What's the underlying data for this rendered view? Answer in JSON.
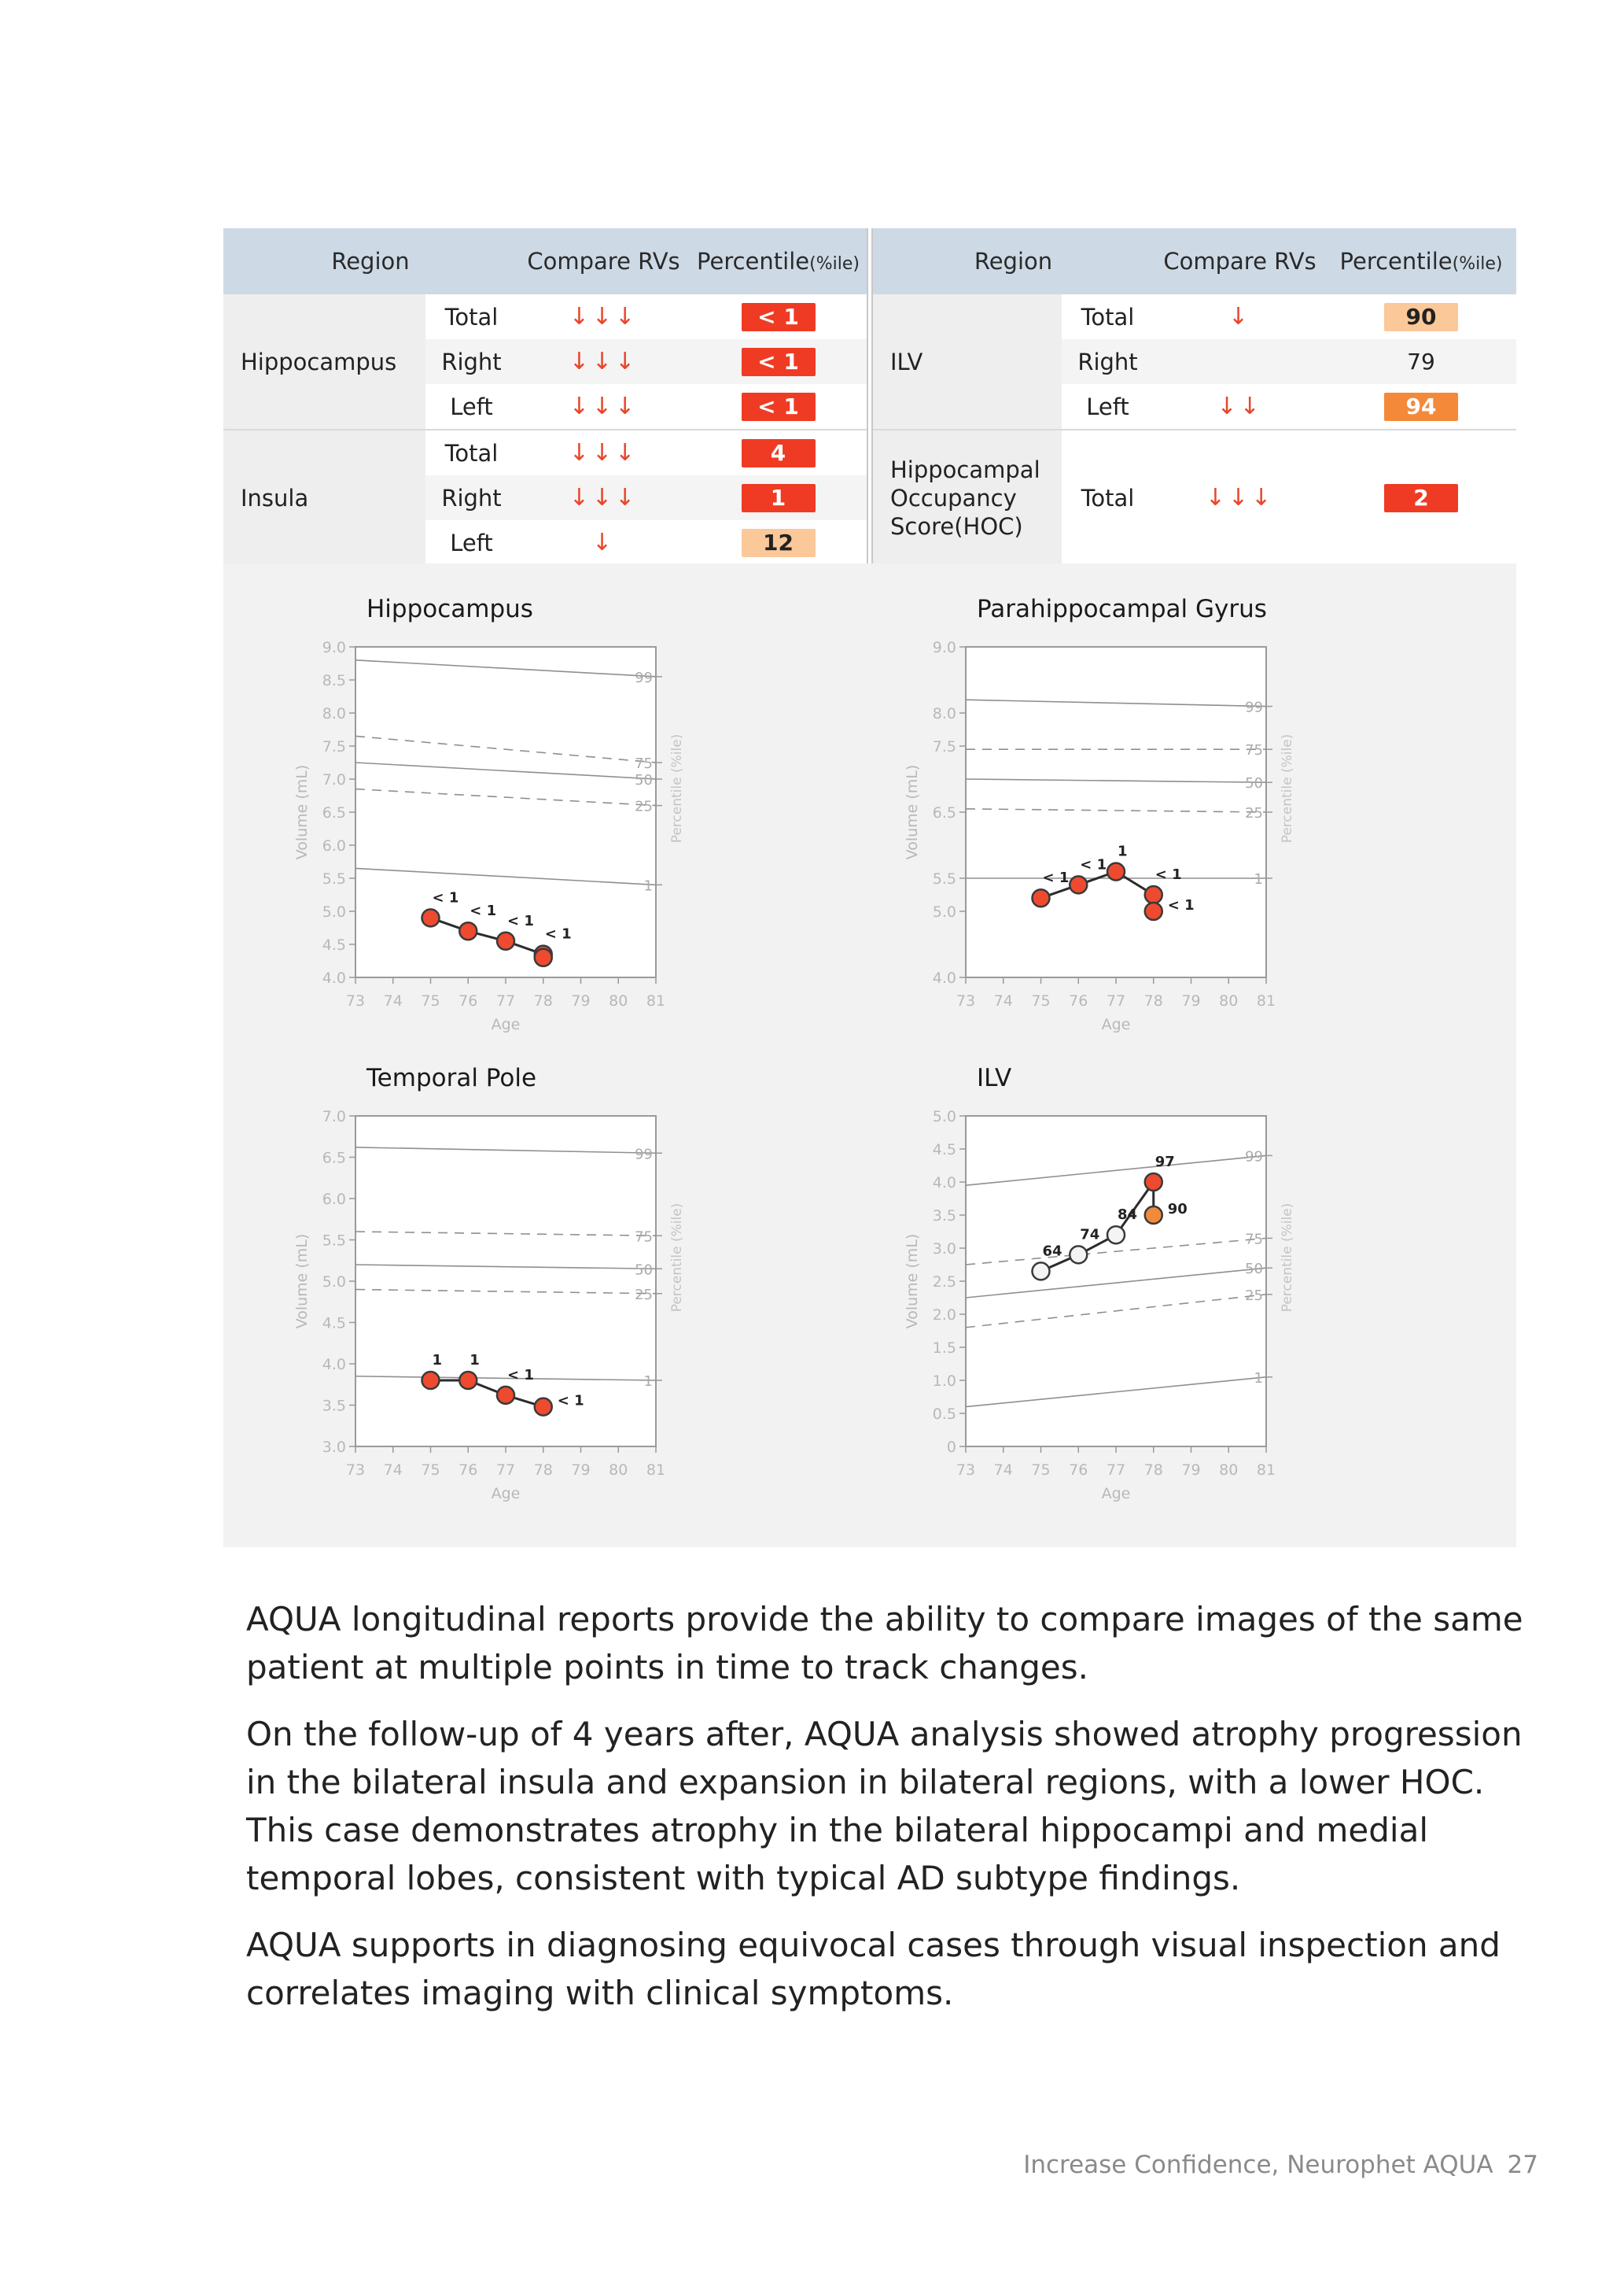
{
  "tables": {
    "headers": {
      "region": "Region",
      "compare": "Compare RVs",
      "percentile": "Percentile",
      "percentile_unit": "(%ile)"
    },
    "left": {
      "groups": [
        {
          "region": "Hippocampus",
          "rows": [
            {
              "side": "Total",
              "arrows": "↓↓↓",
              "value": "< 1",
              "style": "red"
            },
            {
              "side": "Right",
              "arrows": "↓↓↓",
              "value": "< 1",
              "style": "red"
            },
            {
              "side": "Left",
              "arrows": "↓↓↓",
              "value": "< 1",
              "style": "red"
            }
          ]
        },
        {
          "region": "Insula",
          "rows": [
            {
              "side": "Total",
              "arrows": "↓↓↓",
              "value": "4",
              "style": "red"
            },
            {
              "side": "Right",
              "arrows": "↓↓↓",
              "value": "1",
              "style": "red"
            },
            {
              "side": "Left",
              "arrows": "↓",
              "value": "12",
              "style": "light"
            }
          ]
        }
      ]
    },
    "right": {
      "groups": [
        {
          "region": "ILV",
          "rows": [
            {
              "side": "Total",
              "arrows": "↓",
              "value": "90",
              "style": "light"
            },
            {
              "side": "Right",
              "arrows": "",
              "value": "79",
              "style": "none"
            },
            {
              "side": "Left",
              "arrows": "↓↓",
              "value": "94",
              "style": "orange"
            }
          ]
        },
        {
          "region": "Hippocampal Occupancy Score(HOC)",
          "region_lines": [
            "Hippocampal",
            "Occupancy",
            "Score(HOC)"
          ],
          "rows": [
            {
              "side": "Total",
              "arrows": "↓↓↓",
              "value": "2",
              "style": "red"
            }
          ]
        }
      ]
    }
  },
  "chart_data": [
    {
      "type": "line",
      "title": "Hippocampus",
      "xlabel": "Age",
      "ylabel": "Volume (mL)",
      "y2label": "Percentile (%ile)",
      "xlim": [
        73,
        81
      ],
      "xticks": [
        "73",
        "74",
        "75",
        "76",
        "77",
        "78",
        "79",
        "80",
        "81"
      ],
      "ylim": [
        4.0,
        9.0
      ],
      "yticks": [
        "9.0",
        "8.5",
        "8.0",
        "7.5",
        "7.0",
        "6.5",
        "6.0",
        "5.5",
        "5.0",
        "4.5",
        "4.0"
      ],
      "yticks_values": [
        9.0,
        8.5,
        8.0,
        7.5,
        7.0,
        6.5,
        6.0,
        5.5,
        5.0,
        4.5,
        4.0
      ],
      "grid": false,
      "percentile_lines": [
        {
          "name": "99",
          "y": [
            8.8,
            8.55
          ],
          "dashed": false
        },
        {
          "name": "75",
          "y": [
            7.65,
            7.25
          ],
          "dashed": true
        },
        {
          "name": "50",
          "y": [
            7.25,
            7.0
          ],
          "dashed": false
        },
        {
          "name": "25",
          "y": [
            6.85,
            6.6
          ],
          "dashed": true
        },
        {
          "name": "1",
          "y": [
            5.65,
            5.4
          ],
          "dashed": false
        }
      ],
      "series": [
        {
          "x": [
            75,
            76,
            77,
            78,
            78
          ],
          "y": [
            4.9,
            4.7,
            4.55,
            4.35,
            4.3
          ],
          "labels": [
            "< 1",
            "< 1",
            "< 1",
            "< 1",
            ""
          ],
          "colors": [
            "red",
            "red",
            "red",
            "red",
            "red"
          ],
          "color_hex": {
            "red": "#ee4a2f"
          }
        }
      ]
    },
    {
      "type": "line",
      "title": "Parahippocampal Gyrus",
      "xlabel": "Age",
      "ylabel": "Volume (mL)",
      "y2label": "Percentile (%ile)",
      "xlim": [
        73,
        81
      ],
      "xticks": [
        "73",
        "74",
        "75",
        "76",
        "77",
        "78",
        "79",
        "80",
        "81"
      ],
      "ylim": [
        4.0,
        9.0
      ],
      "yticks": [
        "9.0",
        "8.0",
        "7.5",
        "6.5",
        "5.5",
        "5.0",
        "4.0"
      ],
      "yticks_values": [
        9.0,
        8.0,
        7.5,
        6.5,
        5.5,
        5.0,
        4.0
      ],
      "grid": false,
      "percentile_lines": [
        {
          "name": "99",
          "y": [
            8.2,
            8.1
          ],
          "dashed": false
        },
        {
          "name": "75",
          "y": [
            7.45,
            7.45
          ],
          "dashed": true
        },
        {
          "name": "50",
          "y": [
            7.0,
            6.95
          ],
          "dashed": false
        },
        {
          "name": "25",
          "y": [
            6.55,
            6.5
          ],
          "dashed": true
        },
        {
          "name": "1",
          "y": [
            5.5,
            5.5
          ],
          "dashed": false
        }
      ],
      "series": [
        {
          "x": [
            75,
            76,
            77,
            78,
            78
          ],
          "y": [
            5.2,
            5.4,
            5.6,
            5.25,
            5.0
          ],
          "labels": [
            "< 1",
            "< 1",
            "1",
            "< 1",
            "< 1"
          ],
          "colors": [
            "red",
            "red",
            "red",
            "red",
            "red"
          ],
          "color_hex": {
            "red": "#ee4a2f"
          }
        }
      ]
    },
    {
      "type": "line",
      "title": "Temporal Pole",
      "xlabel": "Age",
      "ylabel": "Volume (mL)",
      "y2label": "Percentile (%ile)",
      "xlim": [
        73,
        81
      ],
      "xticks": [
        "73",
        "74",
        "75",
        "76",
        "77",
        "78",
        "79",
        "80",
        "81"
      ],
      "ylim": [
        3.0,
        7.0
      ],
      "yticks": [
        "7.0",
        "6.5",
        "6.0",
        "5.5",
        "5.0",
        "4.5",
        "4.0",
        "3.5",
        "3.0"
      ],
      "yticks_values": [
        7.0,
        6.5,
        6.0,
        5.5,
        5.0,
        4.5,
        4.0,
        3.5,
        3.0
      ],
      "grid": false,
      "percentile_lines": [
        {
          "name": "99",
          "y": [
            6.62,
            6.55
          ],
          "dashed": false
        },
        {
          "name": "75",
          "y": [
            5.6,
            5.55
          ],
          "dashed": true
        },
        {
          "name": "50",
          "y": [
            5.2,
            5.15
          ],
          "dashed": false
        },
        {
          "name": "25",
          "y": [
            4.9,
            4.85
          ],
          "dashed": true
        },
        {
          "name": "1",
          "y": [
            3.85,
            3.8
          ],
          "dashed": false
        }
      ],
      "series": [
        {
          "x": [
            75,
            76,
            77,
            78
          ],
          "y": [
            3.8,
            3.8,
            3.62,
            3.48
          ],
          "labels": [
            "1",
            "1",
            "< 1",
            "< 1"
          ],
          "colors": [
            "red",
            "red",
            "red",
            "red"
          ],
          "color_hex": {
            "red": "#ee4a2f"
          }
        }
      ]
    },
    {
      "type": "line",
      "title": "ILV",
      "xlabel": "Age",
      "ylabel": "Volume (mL)",
      "y2label": "Percentile (%ile)",
      "xlim": [
        73,
        81
      ],
      "xticks": [
        "73",
        "74",
        "75",
        "76",
        "77",
        "78",
        "79",
        "80",
        "81"
      ],
      "ylim": [
        0,
        5.0
      ],
      "yticks": [
        "5.0",
        "4.5",
        "4.0",
        "3.5",
        "3.0",
        "2.5",
        "2.0",
        "1.5",
        "1.0",
        "0.5",
        "0"
      ],
      "yticks_values": [
        5.0,
        4.5,
        4.0,
        3.5,
        3.0,
        2.5,
        2.0,
        1.5,
        1.0,
        0.5,
        0
      ],
      "grid": false,
      "percentile_lines": [
        {
          "name": "99",
          "y": [
            3.95,
            4.4
          ],
          "dashed": false
        },
        {
          "name": "75",
          "y": [
            2.75,
            3.15
          ],
          "dashed": true
        },
        {
          "name": "50",
          "y": [
            2.25,
            2.7
          ],
          "dashed": false
        },
        {
          "name": "25",
          "y": [
            1.8,
            2.3
          ],
          "dashed": true
        },
        {
          "name": "1",
          "y": [
            0.6,
            1.05
          ],
          "dashed": false
        }
      ],
      "series": [
        {
          "x": [
            75,
            76,
            77,
            78,
            78
          ],
          "y": [
            2.65,
            2.9,
            3.2,
            4.0,
            3.5
          ],
          "labels": [
            "64",
            "74",
            "84",
            "97",
            "90"
          ],
          "colors": [
            "white",
            "white",
            "white",
            "red",
            "orange"
          ],
          "color_hex": {
            "red": "#ee4a2f",
            "orange": "#f08a3c",
            "white": "#f4f4f4"
          }
        }
      ]
    }
  ],
  "paragraphs": [
    "AQUA longitudinal reports provide the ability to compare images of the same patient at multiple points in time to track changes.",
    "On the follow-up of 4 years after, AQUA analysis showed atrophy progression in the bilateral insula and expansion in bilateral regions, with a lower HOC. This case demonstrates atrophy in the bilateral hippocampi and medial temporal lobes, consistent with typical AD subtype findings.",
    "AQUA supports in diagnosing equivocal cases through visual inspection and correlates imaging with clinical symptoms."
  ],
  "footer": {
    "text": "Increase Confidence, Neurophet AQUA",
    "page": "27"
  },
  "colors": {
    "header_bg": "#cddae6",
    "badge_red": "#ef3b24",
    "badge_orange": "#f4893a",
    "badge_light": "#fbc89a",
    "arrow": "#e8462a",
    "panel_bg": "#f2f2f2"
  }
}
